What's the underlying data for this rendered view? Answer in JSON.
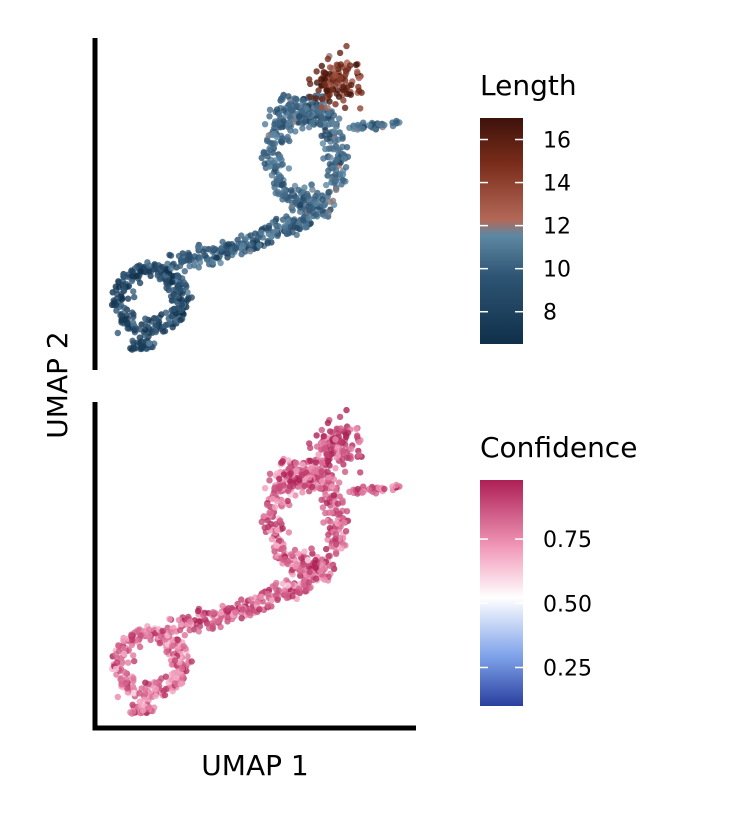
{
  "chart_data": [
    {
      "type": "scatter",
      "panel": "top",
      "xlabel": "UMAP 1",
      "ylabel": "UMAP 2",
      "color_by": "Length",
      "colorbar": {
        "title": "Length",
        "range": [
          6.5,
          17
        ],
        "ticks": [
          8,
          10,
          12,
          14,
          16
        ],
        "tick_labels": [
          "8",
          "10",
          "12",
          "14",
          "16"
        ],
        "colors": [
          "#0f2f4a",
          "#2e5574",
          "#5d88a3",
          "#b36857",
          "#7a2c1a",
          "#3d120a"
        ]
      },
      "clusters": [
        {
          "region": "lower-left loop",
          "typical_value": 8
        },
        {
          "region": "diagonal arm",
          "typical_value": 9
        },
        {
          "region": "upper loop",
          "typical_value": 9.5
        },
        {
          "region": "upper-right tip",
          "typical_value": 15
        }
      ]
    },
    {
      "type": "scatter",
      "panel": "bottom",
      "xlabel": "UMAP 1",
      "ylabel": "UMAP 2",
      "color_by": "Confidence",
      "colorbar": {
        "title": "Confidence",
        "range": [
          0.1,
          0.98
        ],
        "ticks": [
          0.25,
          0.5,
          0.75
        ],
        "tick_labels": [
          "0.25",
          "0.50",
          "0.75"
        ],
        "colors": [
          "#2a3f9e",
          "#7ea2ea",
          "#ffffff",
          "#f29ab9",
          "#ad1f55"
        ]
      },
      "clusters": [
        {
          "region": "lower-left loop",
          "typical_value": 0.82
        },
        {
          "region": "diagonal arm",
          "typical_value": 0.86
        },
        {
          "region": "upper loop",
          "typical_value": 0.85
        },
        {
          "region": "upper-right tip",
          "typical_value": 0.9
        }
      ]
    }
  ]
}
